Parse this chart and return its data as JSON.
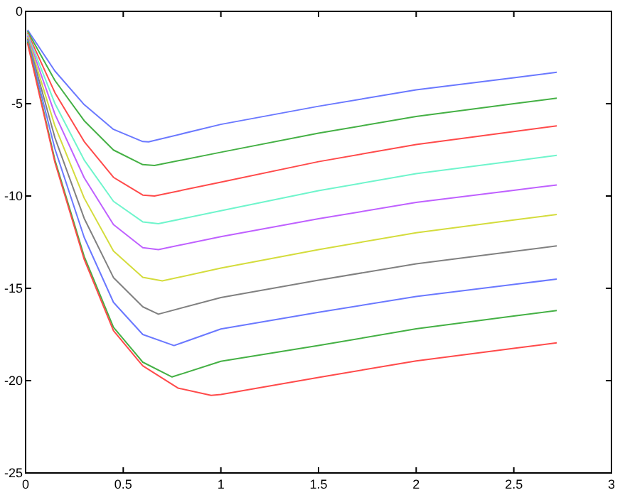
{
  "chart_data": {
    "type": "line",
    "xlim": [
      0,
      3
    ],
    "ylim": [
      -25,
      0
    ],
    "xticks": [
      0,
      0.5,
      1,
      1.5,
      2,
      2.5,
      3
    ],
    "yticks": [
      -25,
      -20,
      -15,
      -10,
      -5,
      0
    ],
    "grid": false,
    "marker": "none",
    "line_style": "solid",
    "series": [
      {
        "color": "#6a78ff",
        "x": [
          0.01,
          0.15,
          0.3,
          0.45,
          0.6,
          0.63,
          1,
          1.5,
          2,
          2.5,
          2.72
        ],
        "values": [
          -1.0,
          -3.23,
          -5.05,
          -6.39,
          -7.05,
          -7.07,
          -6.12,
          -5.14,
          -4.25,
          -3.6,
          -3.3
        ]
      },
      {
        "color": "#44b044",
        "x": [
          0.01,
          0.15,
          0.3,
          0.45,
          0.6,
          0.66,
          1,
          1.5,
          2,
          2.5,
          2.72
        ],
        "values": [
          -1.08,
          -3.74,
          -5.92,
          -7.51,
          -8.3,
          -8.35,
          -7.63,
          -6.6,
          -5.69,
          -5.0,
          -4.7
        ]
      },
      {
        "color": "#ff4a4a",
        "x": [
          0.01,
          0.15,
          0.3,
          0.45,
          0.6,
          0.66,
          1,
          1.5,
          2,
          2.5,
          2.72
        ],
        "values": [
          -1.16,
          -4.4,
          -7.05,
          -8.99,
          -9.95,
          -10.0,
          -9.25,
          -8.14,
          -7.21,
          -6.51,
          -6.2
        ]
      },
      {
        "color": "#6ff5cc",
        "x": [
          0.01,
          0.15,
          0.3,
          0.45,
          0.6,
          0.68,
          1,
          1.5,
          2,
          2.5,
          2.72
        ],
        "values": [
          -1.24,
          -4.99,
          -8.05,
          -10.29,
          -11.4,
          -11.5,
          -10.8,
          -9.71,
          -8.79,
          -8.11,
          -7.8
        ]
      },
      {
        "color": "#bf60ff",
        "x": [
          0.01,
          0.15,
          0.3,
          0.45,
          0.6,
          0.68,
          1,
          1.5,
          2,
          2.5,
          2.72
        ],
        "values": [
          -1.32,
          -5.56,
          -9.01,
          -11.55,
          -12.8,
          -12.9,
          -12.2,
          -11.23,
          -10.35,
          -9.69,
          -9.4
        ]
      },
      {
        "color": "#d4dc3c",
        "x": [
          0.01,
          0.15,
          0.3,
          0.45,
          0.6,
          0.7,
          1,
          1.5,
          2,
          2.5,
          2.72
        ],
        "values": [
          -1.4,
          -6.2,
          -10.11,
          -12.98,
          -14.4,
          -14.6,
          -13.9,
          -12.9,
          -11.99,
          -11.3,
          -11.0
        ]
      },
      {
        "color": "#808080",
        "x": [
          0.01,
          0.15,
          0.3,
          0.45,
          0.6,
          0.68,
          1,
          1.5,
          2,
          2.5,
          2.72
        ],
        "values": [
          -1.48,
          -6.84,
          -11.21,
          -14.42,
          -16.0,
          -16.4,
          -15.5,
          -14.56,
          -13.67,
          -13.0,
          -12.7
        ]
      },
      {
        "color": "#6a78ff",
        "x": [
          0.01,
          0.15,
          0.3,
          0.45,
          0.6,
          0.76,
          1,
          1.5,
          2,
          2.5,
          2.72
        ],
        "values": [
          -1.56,
          -7.44,
          -12.24,
          -15.76,
          -17.5,
          -18.1,
          -17.2,
          -16.3,
          -15.44,
          -14.79,
          -14.5
        ]
      },
      {
        "color": "#44b044",
        "x": [
          0.01,
          0.15,
          0.3,
          0.45,
          0.6,
          0.75,
          1,
          1.5,
          2,
          2.5,
          2.72
        ],
        "values": [
          -1.64,
          -8.05,
          -13.27,
          -17.11,
          -19.0,
          -19.8,
          -18.95,
          -18.1,
          -17.19,
          -16.5,
          -16.2
        ]
      },
      {
        "color": "#ff4a4a",
        "x": [
          0.01,
          0.15,
          0.3,
          0.45,
          0.6,
          0.78,
          0.95,
          1,
          1.5,
          2,
          2.5,
          2.72
        ],
        "values": [
          -1.72,
          -8.17,
          -13.43,
          -17.29,
          -19.2,
          -20.4,
          -20.8,
          -20.75,
          -19.83,
          -18.93,
          -18.25,
          -17.95
        ]
      }
    ]
  }
}
